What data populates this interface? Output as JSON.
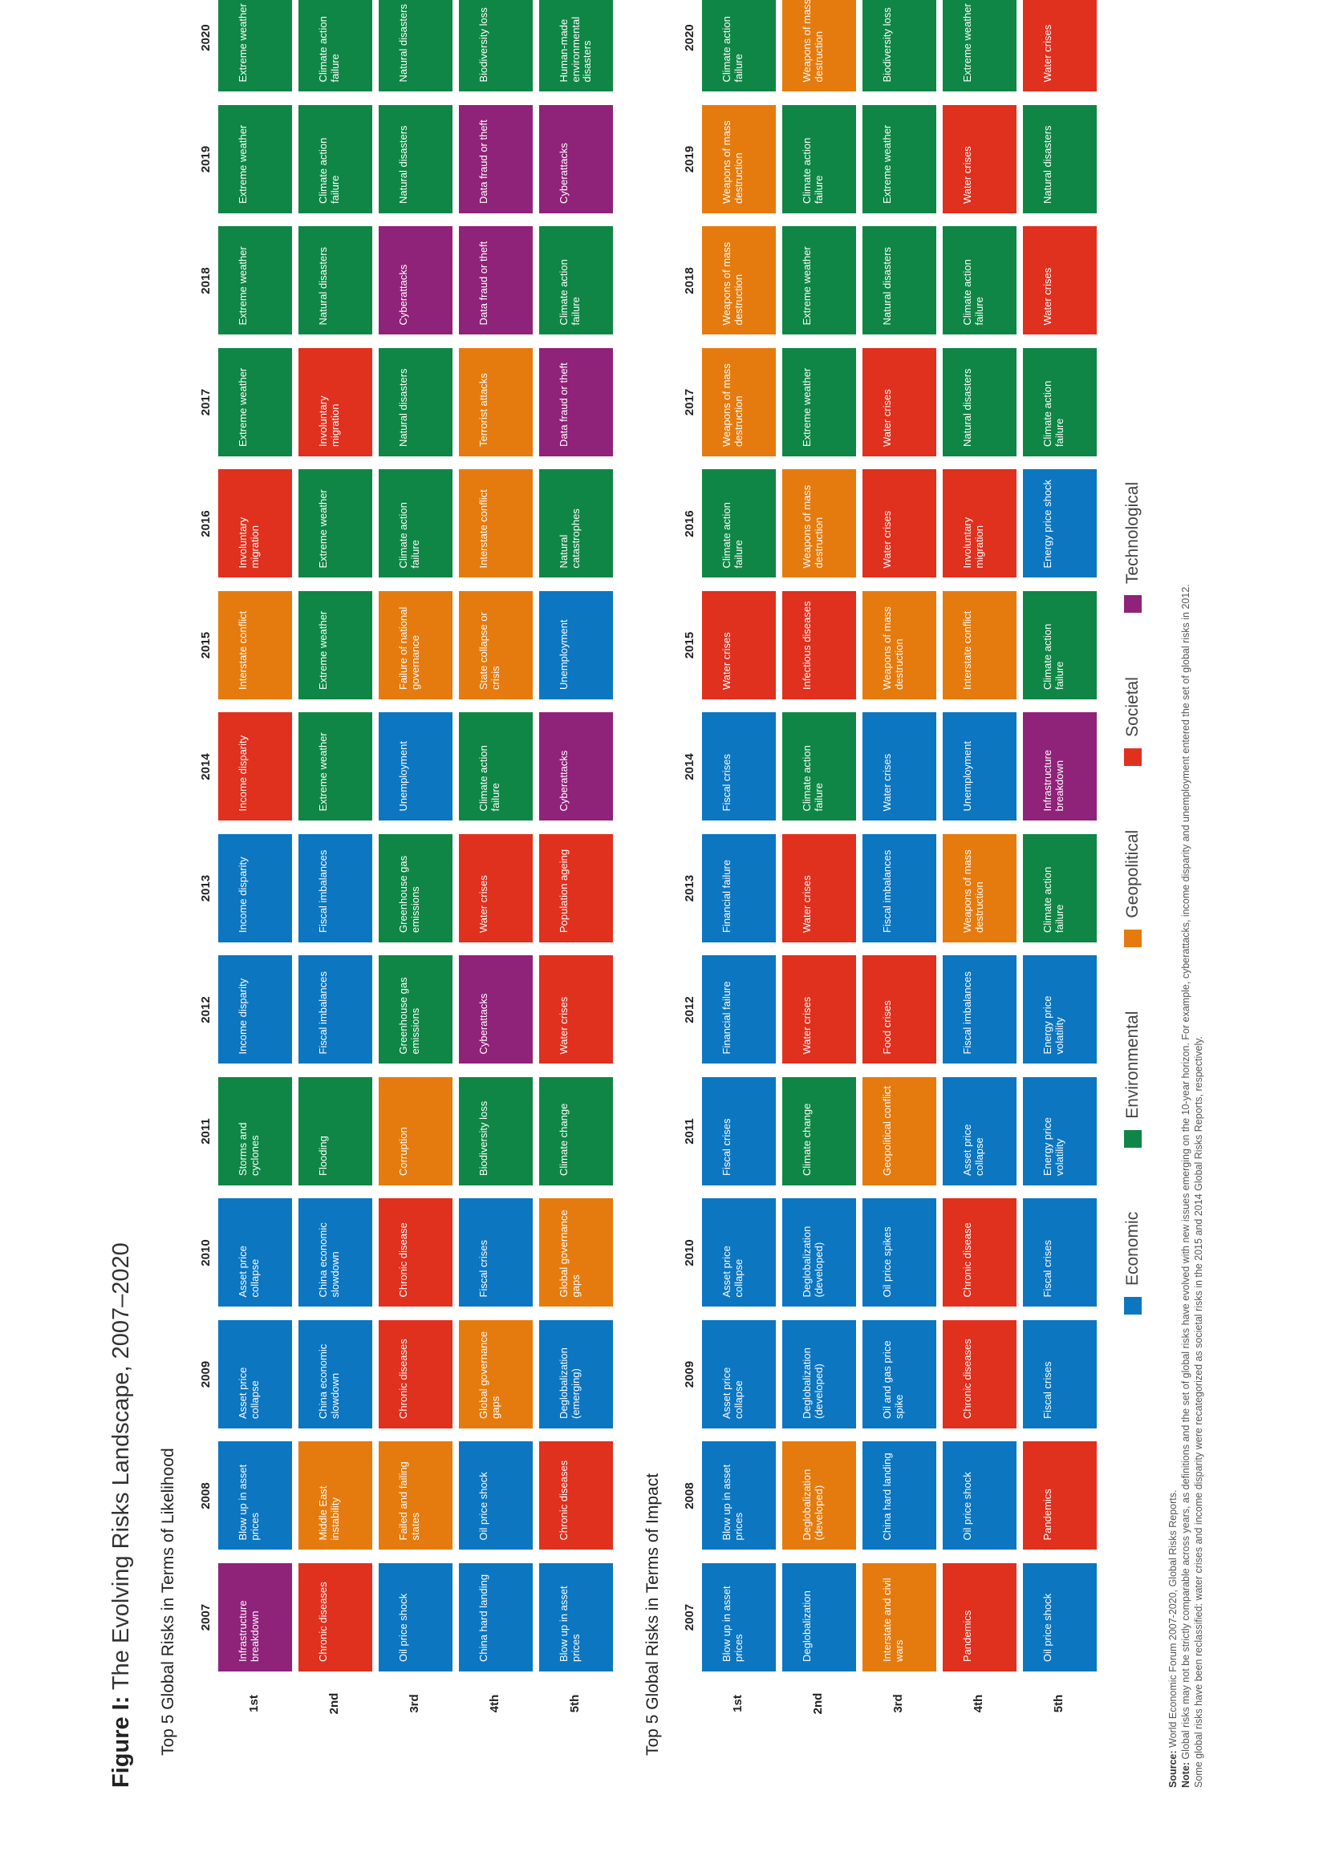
{
  "figure_label": "Figure I:",
  "figure_title": "The Evolving Risks Landscape, 2007–2020",
  "years": [
    "2007",
    "2008",
    "2009",
    "2010",
    "2011",
    "2012",
    "2013",
    "2014",
    "2015",
    "2016",
    "2017",
    "2018",
    "2019",
    "2020"
  ],
  "ranks": [
    "1st",
    "2nd",
    "3rd",
    "4th",
    "5th"
  ],
  "colors": {
    "economic": "#0c76c1",
    "environmental": "#0f8645",
    "geopolitical": "#e57b0e",
    "societal": "#e0301e",
    "technological": "#8f2279"
  },
  "sections": [
    {
      "title": "Top 5 Global Risks in Terms of Likelihood",
      "columns": [
        [
          [
            "Infrastructure breakdown",
            "technological"
          ],
          [
            "Chronic diseases",
            "societal"
          ],
          [
            "Oil price shock",
            "economic"
          ],
          [
            "China hard landing",
            "economic"
          ],
          [
            "Blow up in asset prices",
            "economic"
          ]
        ],
        [
          [
            "Blow up in asset prices",
            "economic"
          ],
          [
            "Middle East instability",
            "geopolitical"
          ],
          [
            "Failed and failing states",
            "geopolitical"
          ],
          [
            "Oil price shock",
            "economic"
          ],
          [
            "Chronic diseases",
            "societal"
          ]
        ],
        [
          [
            "Asset price collapse",
            "economic"
          ],
          [
            "China economic slowdown",
            "economic"
          ],
          [
            "Chronic diseases",
            "societal"
          ],
          [
            "Global governance gaps",
            "geopolitical"
          ],
          [
            "Deglobalization (emerging)",
            "economic"
          ]
        ],
        [
          [
            "Asset price collapse",
            "economic"
          ],
          [
            "China economic slowdown",
            "economic"
          ],
          [
            "Chronic disease",
            "societal"
          ],
          [
            "Fiscal crises",
            "economic"
          ],
          [
            "Global governance gaps",
            "geopolitical"
          ]
        ],
        [
          [
            "Storms and cyclones",
            "environmental"
          ],
          [
            "Flooding",
            "environmental"
          ],
          [
            "Corruption",
            "geopolitical"
          ],
          [
            "Biodiversity loss",
            "environmental"
          ],
          [
            "Climate change",
            "environmental"
          ]
        ],
        [
          [
            "Income disparity",
            "economic"
          ],
          [
            "Fiscal imbalances",
            "economic"
          ],
          [
            "Greenhouse gas emissions",
            "environmental"
          ],
          [
            "Cyberattacks",
            "technological"
          ],
          [
            "Water crises",
            "societal"
          ]
        ],
        [
          [
            "Income disparity",
            "economic"
          ],
          [
            "Fiscal imbalances",
            "economic"
          ],
          [
            "Greenhouse gas emissions",
            "environmental"
          ],
          [
            "Water crises",
            "societal"
          ],
          [
            "Population ageing",
            "societal"
          ]
        ],
        [
          [
            "Income disparity",
            "societal"
          ],
          [
            "Extreme weather",
            "environmental"
          ],
          [
            "Unemployment",
            "economic"
          ],
          [
            "Climate action failure",
            "environmental"
          ],
          [
            "Cyberattacks",
            "technological"
          ]
        ],
        [
          [
            "Interstate conflict",
            "geopolitical"
          ],
          [
            "Extreme weather",
            "environmental"
          ],
          [
            "Failure of national governance",
            "geopolitical"
          ],
          [
            "State collapse or crisis",
            "geopolitical"
          ],
          [
            "Unemployment",
            "economic"
          ]
        ],
        [
          [
            "Involuntary migration",
            "societal"
          ],
          [
            "Extreme weather",
            "environmental"
          ],
          [
            "Climate action failure",
            "environmental"
          ],
          [
            "Interstate conflict",
            "geopolitical"
          ],
          [
            "Natural catastrophes",
            "environmental"
          ]
        ],
        [
          [
            "Extreme weather",
            "environmental"
          ],
          [
            "Involuntary migration",
            "societal"
          ],
          [
            "Natural disasters",
            "environmental"
          ],
          [
            "Terrorist attacks",
            "geopolitical"
          ],
          [
            "Data fraud or theft",
            "technological"
          ]
        ],
        [
          [
            "Extreme weather",
            "environmental"
          ],
          [
            "Natural disasters",
            "environmental"
          ],
          [
            "Cyberattacks",
            "technological"
          ],
          [
            "Data fraud or theft",
            "technological"
          ],
          [
            "Climate action failure",
            "environmental"
          ]
        ],
        [
          [
            "Extreme weather",
            "environmental"
          ],
          [
            "Climate action failure",
            "environmental"
          ],
          [
            "Natural disasters",
            "environmental"
          ],
          [
            "Data fraud or theft",
            "technological"
          ],
          [
            "Cyberattacks",
            "technological"
          ]
        ],
        [
          [
            "Extreme weather",
            "environmental"
          ],
          [
            "Climate action failure",
            "environmental"
          ],
          [
            "Natural disasters",
            "environmental"
          ],
          [
            "Biodiversity loss",
            "environmental"
          ],
          [
            "Human-made environmental disasters",
            "environmental"
          ]
        ]
      ]
    },
    {
      "title": "Top 5 Global Risks in Terms of Impact",
      "columns": [
        [
          [
            "Blow up in asset prices",
            "economic"
          ],
          [
            "Deglobalization",
            "economic"
          ],
          [
            "Interstate and civil wars",
            "geopolitical"
          ],
          [
            "Pandemics",
            "societal"
          ],
          [
            "Oil price shock",
            "economic"
          ]
        ],
        [
          [
            "Blow up in asset prices",
            "economic"
          ],
          [
            "Deglobalization (developed)",
            "geopolitical"
          ],
          [
            "China hard landing",
            "economic"
          ],
          [
            "Oil price shock",
            "economic"
          ],
          [
            "Pandemics",
            "societal"
          ]
        ],
        [
          [
            "Asset price collapse",
            "economic"
          ],
          [
            "Deglobalization (developed)",
            "economic"
          ],
          [
            "Oil and gas price spike",
            "economic"
          ],
          [
            "Chronic diseases",
            "societal"
          ],
          [
            "Fiscal crises",
            "economic"
          ]
        ],
        [
          [
            "Asset price collapse",
            "economic"
          ],
          [
            "Deglobalization (developed)",
            "economic"
          ],
          [
            "Oil price spikes",
            "economic"
          ],
          [
            "Chronic disease",
            "societal"
          ],
          [
            "Fiscal crises",
            "economic"
          ]
        ],
        [
          [
            "Fiscal crises",
            "economic"
          ],
          [
            "Climate change",
            "environmental"
          ],
          [
            "Geopolitical conflict",
            "geopolitical"
          ],
          [
            "Asset price collapse",
            "economic"
          ],
          [
            "Energy price volatility",
            "economic"
          ]
        ],
        [
          [
            "Financial failure",
            "economic"
          ],
          [
            "Water crises",
            "societal"
          ],
          [
            "Food crises",
            "societal"
          ],
          [
            "Fiscal imbalances",
            "economic"
          ],
          [
            "Energy price volatility",
            "economic"
          ]
        ],
        [
          [
            "Financial failure",
            "economic"
          ],
          [
            "Water crises",
            "societal"
          ],
          [
            "Fiscal imbalances",
            "economic"
          ],
          [
            "Weapons of mass destruction",
            "geopolitical"
          ],
          [
            "Climate action failure",
            "environmental"
          ]
        ],
        [
          [
            "Fiscal crises",
            "economic"
          ],
          [
            "Climate action failure",
            "environmental"
          ],
          [
            "Water crises",
            "economic"
          ],
          [
            "Unemployment",
            "economic"
          ],
          [
            "Infrastructure breakdown",
            "technological"
          ]
        ],
        [
          [
            "Water crises",
            "societal"
          ],
          [
            "Infectious diseases",
            "societal"
          ],
          [
            "Weapons of mass destruction",
            "geopolitical"
          ],
          [
            "Interstate conflict",
            "geopolitical"
          ],
          [
            "Climate action failure",
            "environmental"
          ]
        ],
        [
          [
            "Climate action failure",
            "environmental"
          ],
          [
            "Weapons of mass destruction",
            "geopolitical"
          ],
          [
            "Water crises",
            "societal"
          ],
          [
            "Involuntary migration",
            "societal"
          ],
          [
            "Energy price shock",
            "economic"
          ]
        ],
        [
          [
            "Weapons of mass destruction",
            "geopolitical"
          ],
          [
            "Extreme weather",
            "environmental"
          ],
          [
            "Water crises",
            "societal"
          ],
          [
            "Natural disasters",
            "environmental"
          ],
          [
            "Climate action failure",
            "environmental"
          ]
        ],
        [
          [
            "Weapons of mass destruction",
            "geopolitical"
          ],
          [
            "Extreme weather",
            "environmental"
          ],
          [
            "Natural disasters",
            "environmental"
          ],
          [
            "Climate action failure",
            "environmental"
          ],
          [
            "Water crises",
            "societal"
          ]
        ],
        [
          [
            "Weapons of mass destruction",
            "geopolitical"
          ],
          [
            "Climate action failure",
            "environmental"
          ],
          [
            "Extreme weather",
            "environmental"
          ],
          [
            "Water crises",
            "societal"
          ],
          [
            "Natural disasters",
            "environmental"
          ]
        ],
        [
          [
            "Climate action failure",
            "environmental"
          ],
          [
            "Weapons of mass destruction",
            "geopolitical"
          ],
          [
            "Biodiversity loss",
            "environmental"
          ],
          [
            "Extreme weather",
            "environmental"
          ],
          [
            "Water crises",
            "societal"
          ]
        ]
      ]
    }
  ],
  "legend": [
    {
      "label": "Economic",
      "key": "economic"
    },
    {
      "label": "Environmental",
      "key": "environmental"
    },
    {
      "label": "Geopolitical",
      "key": "geopolitical"
    },
    {
      "label": "Societal",
      "key": "societal"
    },
    {
      "label": "Technological",
      "key": "technological"
    }
  ],
  "footnotes": {
    "source_label": "Source:",
    "source_text": "World Economic Forum 2007-2020, Global Risks Reports.",
    "note_label": "Note:",
    "note_text": "Global risks may not be strictly comparable across years, as definitions and the set of global risks have evolved with new issues emerging on the 10-year horizon. For example, cyberattacks, income disparity and unemployment entered the set of global risks in 2012.",
    "note_text_2": "Some global risks have been reclassified: water crises and income disparity were recategorized as societal risks in the 2015 and 2014 Global Risks Reports, respectively."
  }
}
